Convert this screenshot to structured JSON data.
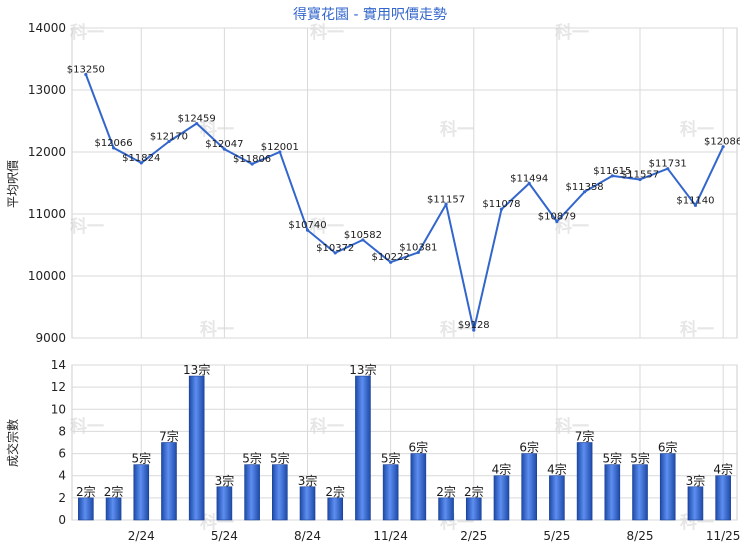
{
  "chart_data": [
    {
      "type": "line",
      "title": "得寶花園 - 實用呎價走勢",
      "ylabel": "平均呎價",
      "ylim": [
        9000,
        14000
      ],
      "yticks": [
        9000,
        10000,
        11000,
        12000,
        13000,
        14000
      ],
      "grid": true,
      "color": "#3366cc",
      "series": [
        {
          "values": [
            13250,
            12066,
            11824,
            12170,
            12459,
            12047,
            11806,
            12001,
            10740,
            10372,
            10582,
            10222,
            10381,
            11157,
            9128,
            11078,
            11494,
            10879,
            11358,
            11615,
            11557,
            11731,
            11140,
            12086
          ],
          "labels": [
            "$13250",
            "$12066",
            "$11824",
            "$12170",
            "$12459",
            "$12047",
            "$11806",
            "$12001",
            "$10740",
            "$10372",
            "$10582",
            "$10222",
            "$10381",
            "$11157",
            "$9128",
            "$11078",
            "$11494",
            "$10879",
            "$11358",
            "$11615",
            "$11557",
            "$11731",
            "$11140",
            "$12086"
          ]
        }
      ]
    },
    {
      "type": "bar",
      "ylabel": "成交宗數",
      "ylim": [
        0,
        14
      ],
      "yticks": [
        0,
        2,
        4,
        6,
        8,
        10,
        12,
        14
      ],
      "xtick_labels": [
        "2/24",
        "5/24",
        "8/24",
        "11/24",
        "2/25",
        "5/25",
        "8/25",
        "11/25"
      ],
      "xtick_indices": [
        2,
        5,
        8,
        11,
        14,
        17,
        20,
        23
      ],
      "grid": true,
      "color": "#3366cc",
      "values": [
        2,
        2,
        5,
        7,
        13,
        3,
        5,
        5,
        3,
        2,
        13,
        5,
        6,
        2,
        2,
        4,
        6,
        4,
        7,
        5,
        5,
        6,
        3,
        4
      ],
      "labels": [
        "2宗",
        "2宗",
        "5宗",
        "7宗",
        "13宗",
        "3宗",
        "5宗",
        "5宗",
        "3宗",
        "2宗",
        "13宗",
        "5宗",
        "6宗",
        "2宗",
        "2宗",
        "4宗",
        "6宗",
        "4宗",
        "7宗",
        "5宗",
        "5宗",
        "6宗",
        "3宗",
        "4宗"
      ]
    }
  ],
  "watermark": "科一"
}
